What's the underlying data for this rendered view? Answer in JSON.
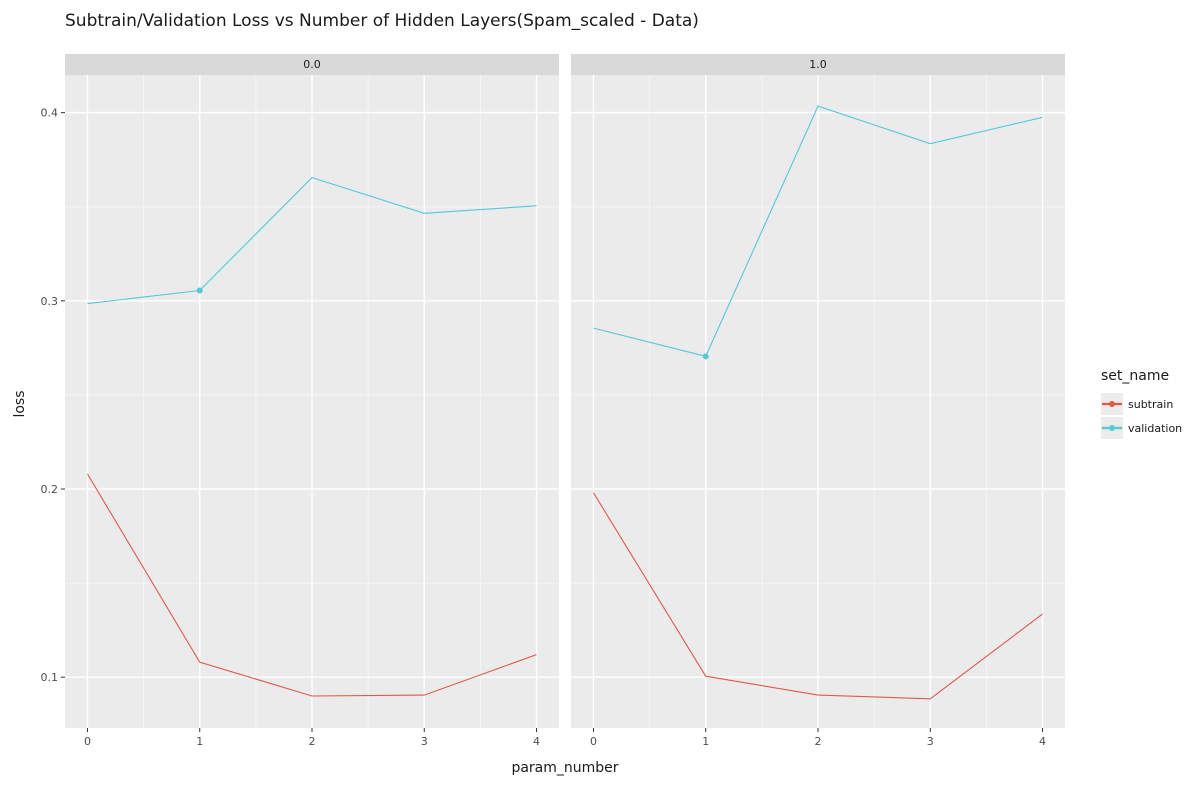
{
  "chart_data": {
    "type": "line",
    "title": "Subtrain/Validation Loss vs Number of Hidden Layers(Spam_scaled - Data)",
    "xlabel": "param_number",
    "ylabel": "loss",
    "xlim": [
      -0.2,
      4.2
    ],
    "ylim": [
      0.073,
      0.42
    ],
    "x_ticks": [
      0,
      1,
      2,
      3,
      4
    ],
    "y_ticks": [
      0.1,
      0.2,
      0.3,
      0.4
    ],
    "y_tick_labels": [
      "0.1",
      "0.2",
      "0.3",
      "0.4"
    ],
    "grid": true,
    "legend": {
      "title": "set_name",
      "position": "right",
      "entries": [
        {
          "name": "subtrain",
          "color": "#e05a4b"
        },
        {
          "name": "validation",
          "color": "#55c8d8"
        }
      ]
    },
    "facets": [
      {
        "label": "0.0",
        "series": [
          {
            "name": "subtrain",
            "x": [
              0,
              1,
              2,
              3,
              4
            ],
            "values": [
              0.208,
              0.108,
              0.09,
              0.0905,
              0.112
            ]
          },
          {
            "name": "validation",
            "x": [
              0,
              1,
              2,
              3,
              4
            ],
            "values": [
              0.2985,
              0.3055,
              0.3655,
              0.3465,
              0.3505
            ]
          }
        ],
        "markers": [
          {
            "series": "validation",
            "x": 1,
            "y": 0.3055
          }
        ]
      },
      {
        "label": "1.0",
        "series": [
          {
            "name": "subtrain",
            "x": [
              0,
              1,
              2,
              3,
              4
            ],
            "values": [
              0.198,
              0.1005,
              0.0905,
              0.0885,
              0.1335
            ]
          },
          {
            "name": "validation",
            "x": [
              0,
              1,
              2,
              3,
              4
            ],
            "values": [
              0.2855,
              0.2705,
              0.4035,
              0.3835,
              0.3975
            ]
          }
        ],
        "markers": [
          {
            "series": "validation",
            "x": 1,
            "y": 0.2705
          }
        ]
      }
    ]
  },
  "colors": {
    "panel_bg": "#ebebeb",
    "strip_bg": "#d9d9d9",
    "grid_major": "#ffffff",
    "grid_minor": "#f5f5f5",
    "legend_key_bg": "#ebebeb"
  }
}
